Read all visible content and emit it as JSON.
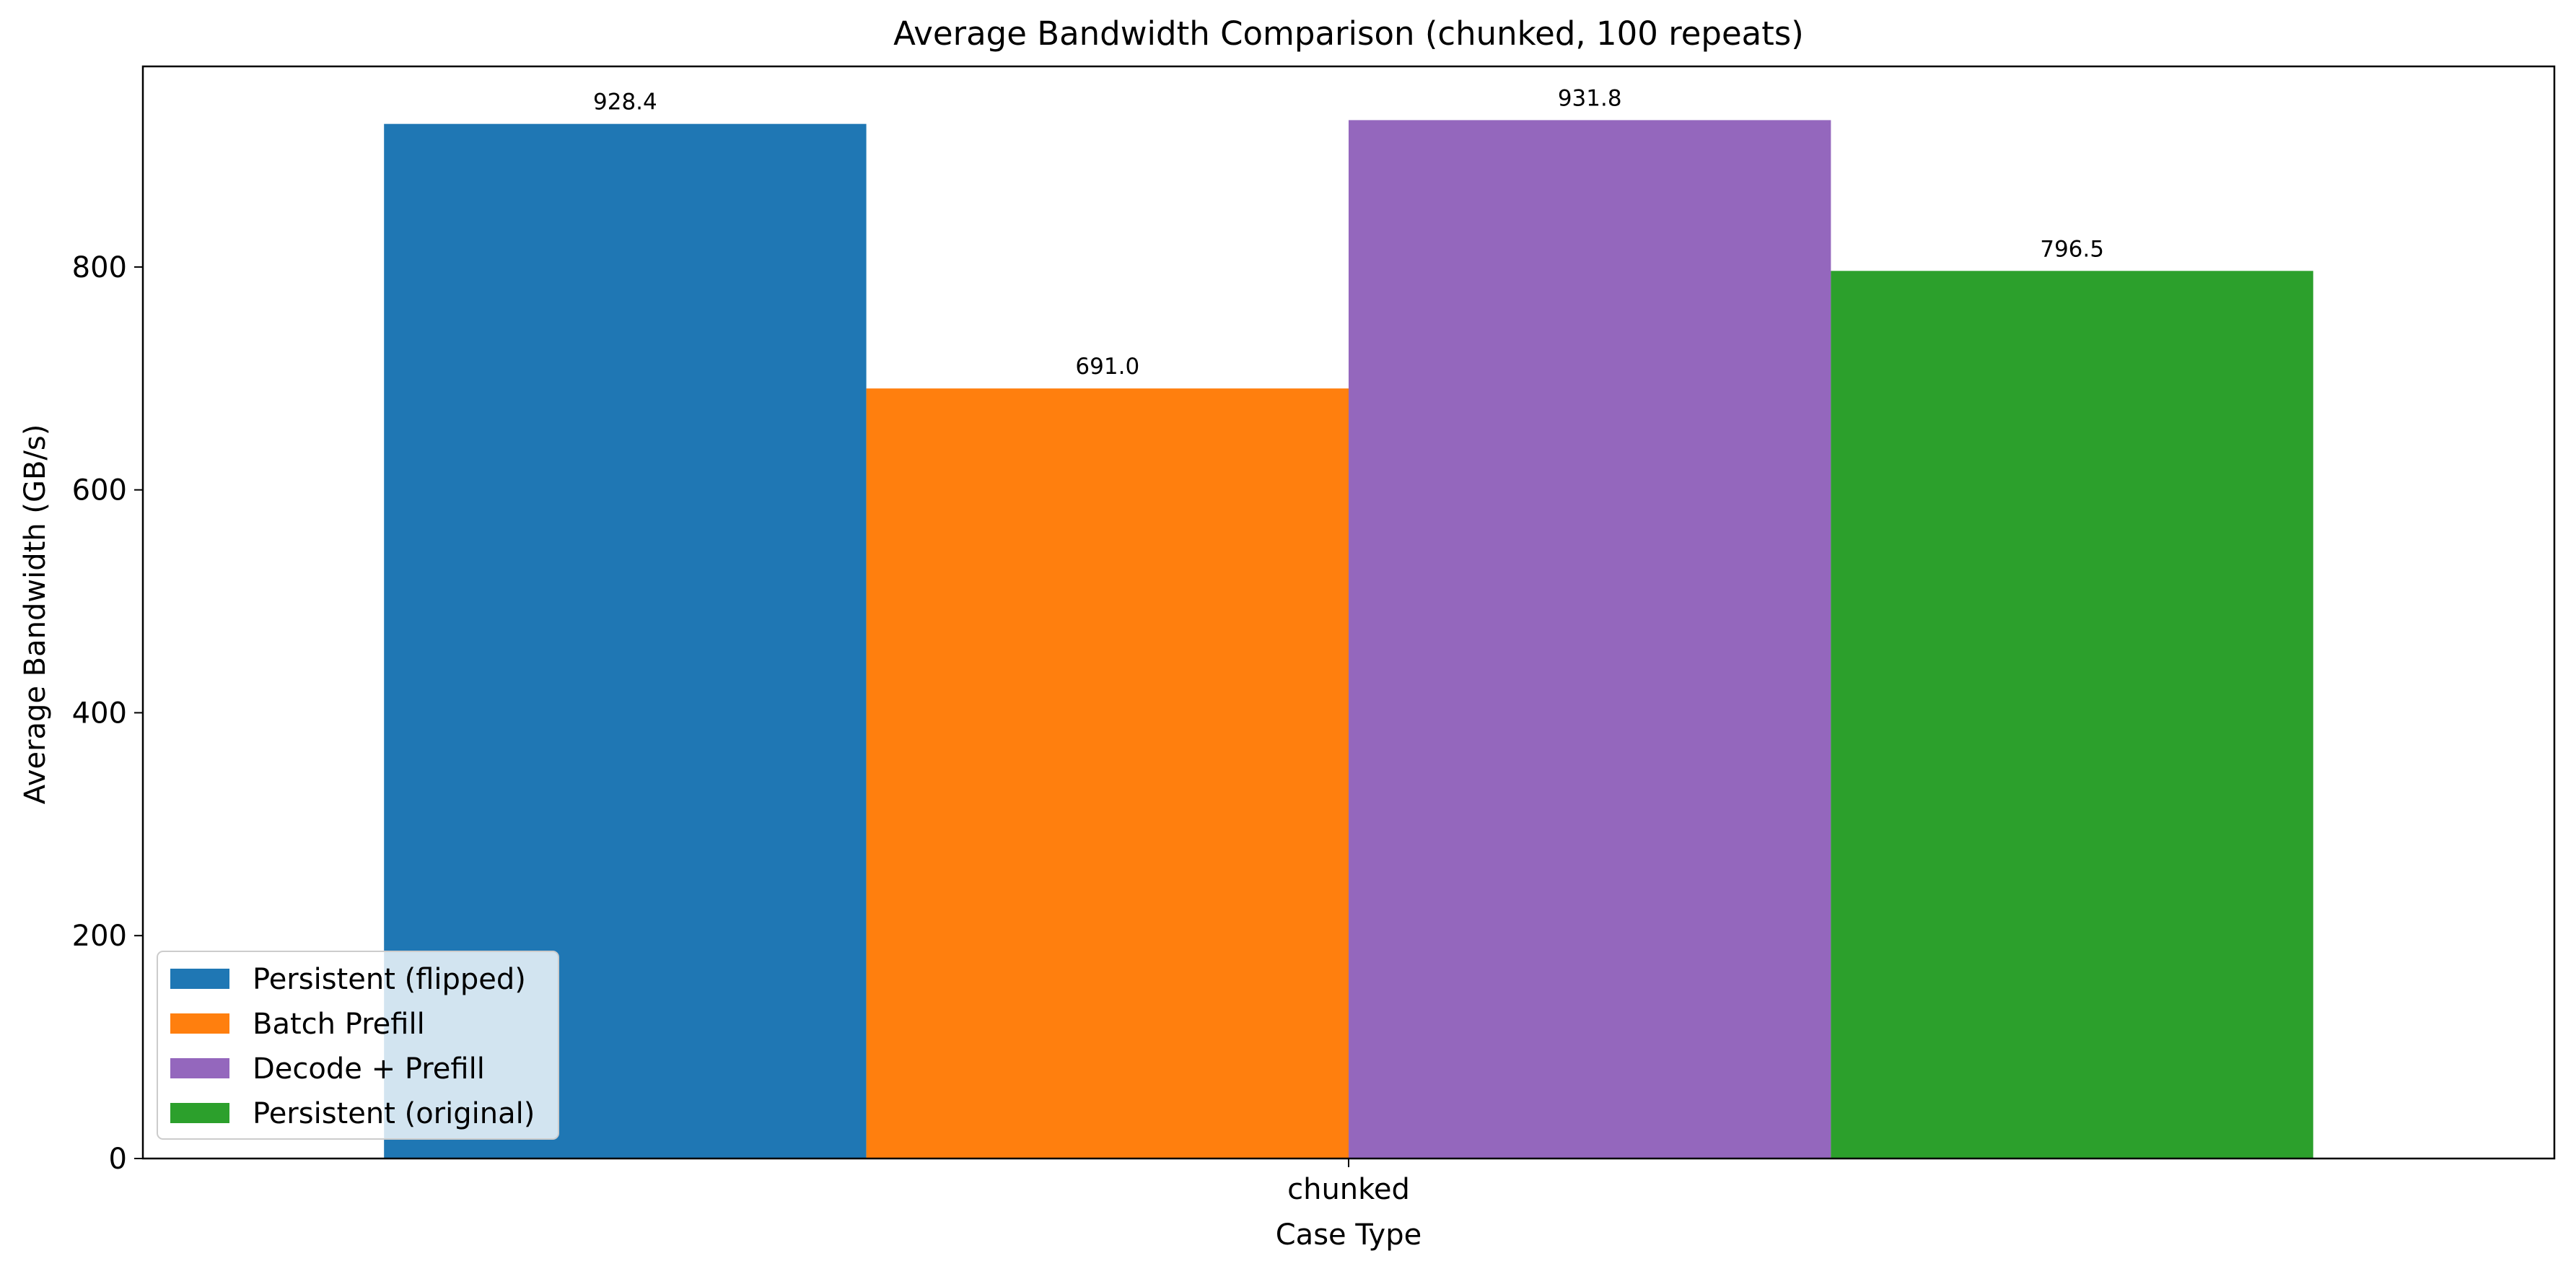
{
  "chart_data": {
    "type": "bar",
    "title": "Average Bandwidth Comparison (chunked, 100 repeats)",
    "xlabel": "Case Type",
    "ylabel": "Average Bandwidth (GB/s)",
    "categories": [
      "chunked"
    ],
    "ylim": [
      0,
      980
    ],
    "yticks": [
      0,
      200,
      400,
      600,
      800
    ],
    "grid": false,
    "legend_position": "lower-left",
    "series": [
      {
        "name": "Persistent (flipped)",
        "values": [
          928.4
        ],
        "color": "#1f77b4",
        "data_label": "928.4"
      },
      {
        "name": "Batch Prefill",
        "values": [
          691.0
        ],
        "color": "#ff7f0e",
        "data_label": "691.0"
      },
      {
        "name": "Decode + Prefill",
        "values": [
          931.8
        ],
        "color": "#9467bd",
        "data_label": "931.8"
      },
      {
        "name": "Persistent (original)",
        "values": [
          796.5
        ],
        "color": "#2ca02c",
        "data_label": "796.5"
      }
    ]
  }
}
